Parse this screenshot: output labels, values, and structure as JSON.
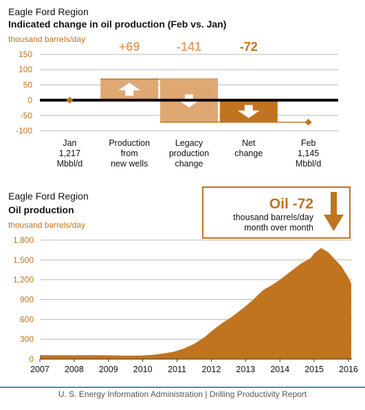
{
  "colors": {
    "accent": "#c0741f",
    "accent_light": "#dfa873",
    "axis_label": "#c0741f",
    "zero_line": "#000000",
    "gridline": "#b9b9b9",
    "footer_rule": "#3a8fd0",
    "footer_text": "#555555"
  },
  "footer": {
    "source": "U. S. Energy Information Administration",
    "separator": "|",
    "report": "Drilling Productivity Report"
  },
  "chart_data": [
    {
      "type": "bar",
      "subtype": "waterfall",
      "region": "Eagle Ford Region",
      "title": "Indicated change in oil production (Feb vs. Jan)",
      "ylabel": "thousand barrels/day",
      "ylim": [
        -100,
        150
      ],
      "yticks": [
        150,
        100,
        50,
        0,
        -50,
        -100
      ],
      "grid": true,
      "categories": [
        [
          "Jan",
          "1,217",
          "Mbbl/d"
        ],
        [
          "Production",
          "from",
          "new wells"
        ],
        [
          "Legacy",
          "production",
          "change"
        ],
        [
          "Net",
          "change"
        ],
        [
          "Feb",
          "1,145",
          "Mbbl/d"
        ]
      ],
      "steps": [
        {
          "category": 1,
          "label": "+69",
          "start": 0,
          "end": 69,
          "arrow": "up-arrow-icon"
        },
        {
          "category": 2,
          "label": "-141",
          "start": 69,
          "end": -72,
          "arrow": "down-arrow-icon"
        },
        {
          "category": 3,
          "label": "-72",
          "start": 0,
          "end": -72,
          "arrow": "down-arrow-icon"
        }
      ],
      "markers": [
        {
          "category": 0,
          "value": 0
        },
        {
          "category": 4,
          "value": -72
        }
      ]
    },
    {
      "type": "area",
      "region": "Eagle Ford Region",
      "title": "Oil production",
      "ylabel": "thousand barrels/day",
      "ylim": [
        0,
        1800
      ],
      "yticks": [
        0,
        300,
        600,
        900,
        1200,
        1500,
        1800
      ],
      "xlim": [
        2007.0,
        2016.1
      ],
      "xticks": [
        "2007",
        "2008",
        "2009",
        "2010",
        "2011",
        "2012",
        "2013",
        "2014",
        "2015",
        "2016"
      ],
      "grid": true,
      "callout": {
        "headline": "Oil -72",
        "line1": "thousand barrels/day",
        "line2": "month over month",
        "icon": "down-arrow-icon"
      },
      "x": [
        2007.0,
        2007.5,
        2008.0,
        2008.5,
        2009.0,
        2009.5,
        2010.0,
        2010.3,
        2010.6,
        2010.9,
        2011.2,
        2011.5,
        2011.8,
        2012.0,
        2012.3,
        2012.6,
        2012.9,
        2013.2,
        2013.5,
        2013.8,
        2014.0,
        2014.3,
        2014.6,
        2014.9,
        2015.0,
        2015.2,
        2015.4,
        2015.6,
        2015.8,
        2016.0,
        2016.08
      ],
      "values": [
        60,
        58,
        58,
        60,
        57,
        52,
        55,
        65,
        85,
        110,
        160,
        230,
        330,
        420,
        540,
        640,
        760,
        890,
        1040,
        1130,
        1200,
        1320,
        1440,
        1530,
        1600,
        1680,
        1620,
        1510,
        1400,
        1230,
        1145
      ]
    }
  ]
}
